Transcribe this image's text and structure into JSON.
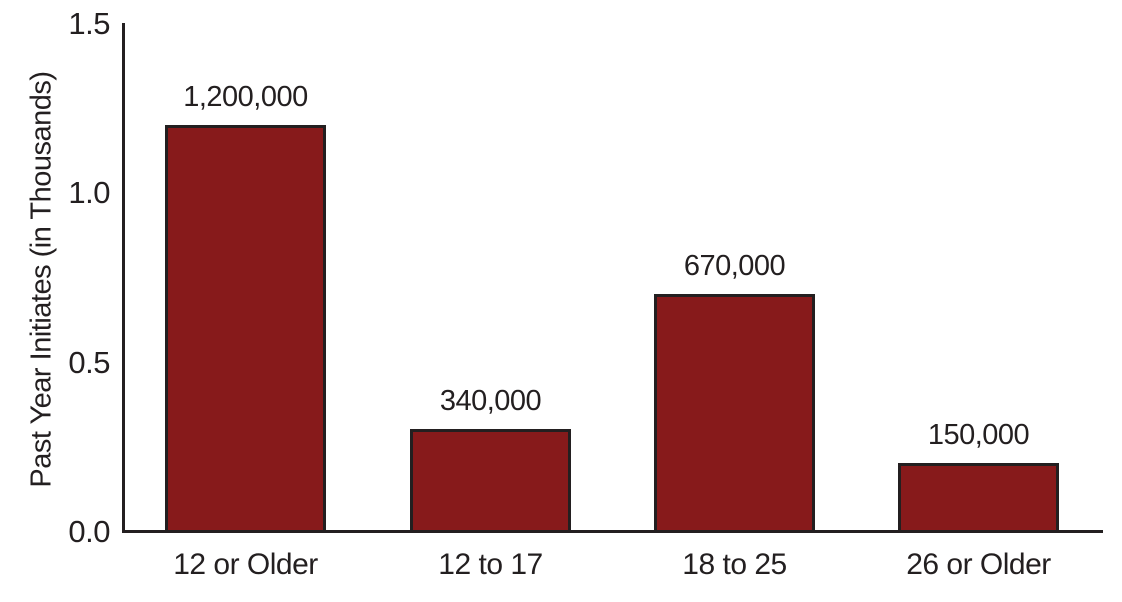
{
  "chart_data": {
    "type": "bar",
    "title": "",
    "ylabel": "Past Year Initiates (in Thousands)",
    "xlabel": "",
    "categories": [
      "12 or Older",
      "12 to 17",
      "18 to 25",
      "26 or Older"
    ],
    "values": [
      1200000,
      340000,
      670000,
      150000
    ],
    "data_labels": [
      "1,200,000",
      "340,000",
      "670,000",
      "150,000"
    ],
    "values_in_axis_units": [
      1.2,
      0.34,
      0.67,
      0.15
    ],
    "drawn_bar_heights_axis_units": [
      1.2,
      0.3,
      0.7,
      0.2
    ],
    "ylim": [
      0,
      1.5
    ],
    "yticks": [
      "0.0",
      "0.5",
      "1.0",
      "1.5"
    ],
    "grid": false,
    "legend_position": "none",
    "colors": {
      "bar_fill": "#871a1b",
      "bar_border": "#231f20",
      "axis": "#231f20",
      "text": "#231f20",
      "background": "#ffffff"
    }
  }
}
